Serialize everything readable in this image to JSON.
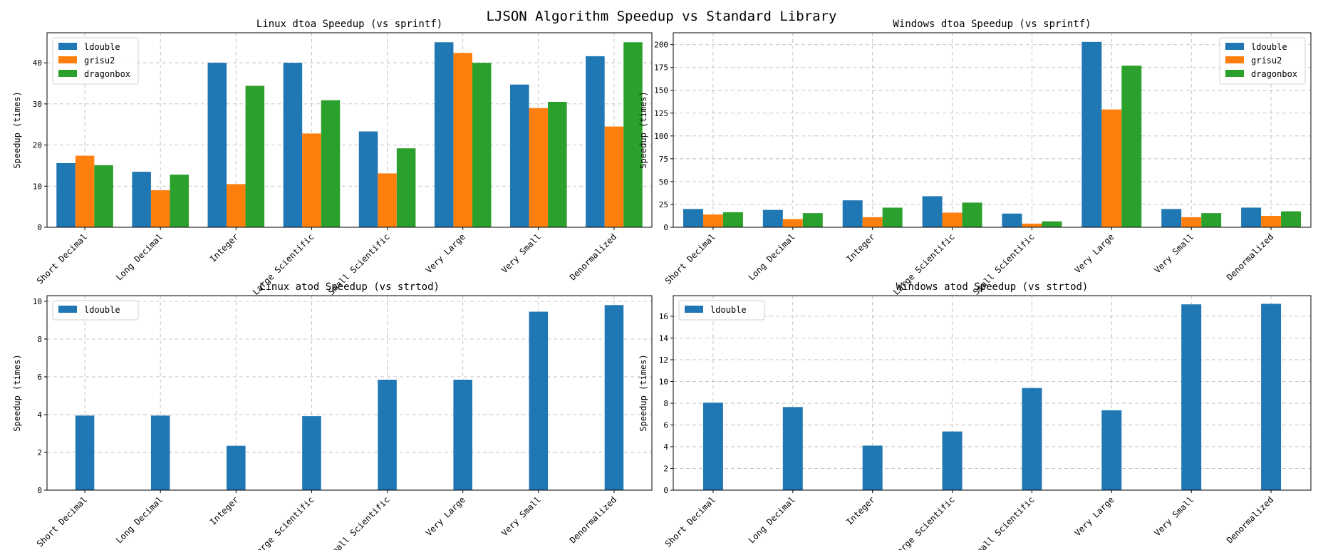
{
  "suptitle": "LJSON Algorithm Speedup vs Standard Library",
  "colors": {
    "ldouble": "#1f77b4",
    "grisu2": "#ff7f0e",
    "dragonbox": "#2ca02c",
    "grid": "#b0b0b0"
  },
  "chart_data": [
    {
      "type": "bar",
      "title": "Linux dtoa Speedup (vs sprintf)",
      "xlabel": "",
      "ylabel": "Speedup (times)",
      "categories": [
        "Short Decimal",
        "Long Decimal",
        "Integer",
        "Large Scientific",
        "Small Scientific",
        "Very Large",
        "Very Small",
        "Denormalized"
      ],
      "series": [
        {
          "name": "ldouble",
          "values": [
            15.6,
            13.5,
            40.0,
            40.0,
            23.3,
            45.0,
            34.7,
            41.6
          ]
        },
        {
          "name": "grisu2",
          "values": [
            17.4,
            9.0,
            10.5,
            22.8,
            13.1,
            42.4,
            29.0,
            24.5
          ]
        },
        {
          "name": "dragonbox",
          "values": [
            15.1,
            12.8,
            34.4,
            30.9,
            19.2,
            40.0,
            30.5,
            45.0
          ]
        }
      ],
      "yticks": [
        0,
        10,
        20,
        30,
        40
      ],
      "ylim": [
        0,
        47.3
      ],
      "grid": true,
      "legend": "upper left"
    },
    {
      "type": "bar",
      "title": "Windows dtoa Speedup (vs sprintf)",
      "xlabel": "",
      "ylabel": "Speedup (times)",
      "categories": [
        "Short Decimal",
        "Long Decimal",
        "Integer",
        "Large Scientific",
        "Small Scientific",
        "Very Large",
        "Very Small",
        "Denormalized"
      ],
      "series": [
        {
          "name": "ldouble",
          "values": [
            20.0,
            19.0,
            29.5,
            34.0,
            15.0,
            203.0,
            20.0,
            21.5
          ]
        },
        {
          "name": "grisu2",
          "values": [
            14.0,
            9.0,
            11.0,
            16.0,
            4.0,
            129.0,
            11.0,
            12.5
          ]
        },
        {
          "name": "dragonbox",
          "values": [
            16.5,
            15.5,
            21.5,
            27.0,
            6.5,
            177.0,
            15.5,
            17.5
          ]
        }
      ],
      "yticks": [
        0,
        25,
        50,
        75,
        100,
        125,
        150,
        175,
        200
      ],
      "ylim": [
        0,
        213
      ],
      "grid": true,
      "legend": "upper right"
    },
    {
      "type": "bar",
      "title": "Linux atod Speedup (vs strtod)",
      "xlabel": "",
      "ylabel": "Speedup (times)",
      "categories": [
        "Short Decimal",
        "Long Decimal",
        "Integer",
        "Large Scientific",
        "Small Scientific",
        "Very Large",
        "Very Small",
        "Denormalized"
      ],
      "series": [
        {
          "name": "ldouble",
          "values": [
            3.95,
            3.95,
            2.35,
            3.92,
            5.85,
            5.85,
            9.45,
            9.8
          ]
        }
      ],
      "yticks": [
        0,
        2,
        4,
        6,
        8,
        10
      ],
      "ylim": [
        0,
        10.3
      ],
      "grid": true,
      "legend": "upper left"
    },
    {
      "type": "bar",
      "title": "Windows atod Speedup (vs strtod)",
      "xlabel": "",
      "ylabel": "Speedup (times)",
      "categories": [
        "Short Decimal",
        "Long Decimal",
        "Integer",
        "Large Scientific",
        "Small Scientific",
        "Very Large",
        "Very Small",
        "Denormalized"
      ],
      "series": [
        {
          "name": "ldouble",
          "values": [
            8.05,
            7.65,
            4.1,
            5.4,
            9.4,
            7.35,
            17.1,
            17.15
          ]
        }
      ],
      "yticks": [
        0,
        2,
        4,
        6,
        8,
        10,
        12,
        14,
        16
      ],
      "ylim": [
        0,
        17.9
      ],
      "grid": true,
      "legend": "upper left"
    }
  ]
}
